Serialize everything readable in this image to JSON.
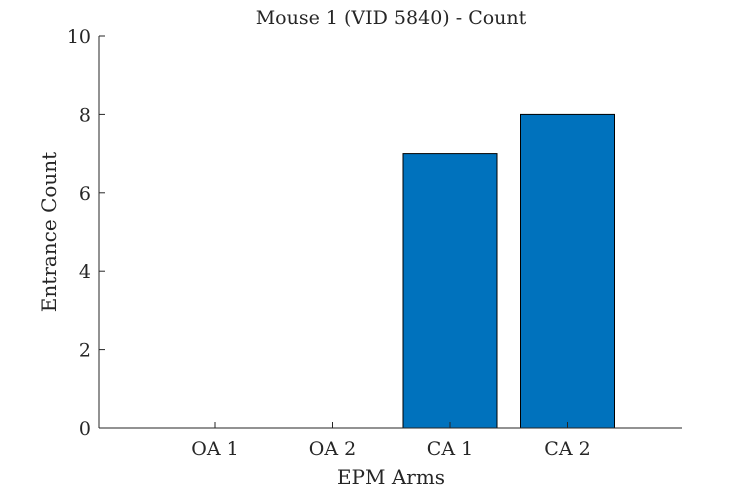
{
  "chart_data": {
    "type": "bar",
    "title": "Mouse 1 (VID 5840) - Count",
    "xlabel": "EPM Arms",
    "ylabel": "Entrance Count",
    "categories": [
      "OA 1",
      "OA 2",
      "CA 1",
      "CA 2"
    ],
    "values": [
      0,
      0,
      7,
      8
    ],
    "ylim": [
      0,
      10
    ],
    "yticks": [
      0,
      2,
      4,
      6,
      8,
      10
    ],
    "grid": false,
    "bar_color": "#0072BD",
    "bar_edge_color": "#000000"
  }
}
